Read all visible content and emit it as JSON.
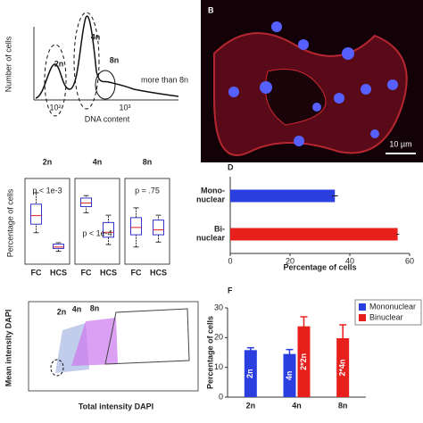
{
  "panels": {
    "a": {
      "ylabel": "Number of cells",
      "xlabel": "DNA content",
      "peaks": [
        "2n",
        "4n",
        "8n",
        "more than 8n"
      ],
      "ticks": [
        "10²",
        "10³"
      ]
    },
    "b": {
      "letter": "B",
      "scale": "10 µm"
    },
    "d": {
      "letter": "D"
    },
    "e": {
      "ylabel": "Mean intensity DAPI",
      "xlabel": "Total intensity DAPI",
      "gates": [
        "2n",
        "4n",
        "8n"
      ]
    },
    "f": {
      "letter": "F"
    }
  },
  "chart_data": [
    {
      "type": "box",
      "ylabel": "Percentage of cells",
      "panels": [
        {
          "title": "2n",
          "categories": [
            "FC",
            "HCS"
          ],
          "annotation": "p < 1e-3",
          "ylim": [
            10,
            40
          ],
          "boxes": [
            {
              "min": 21,
              "q1": 24,
              "median": 27,
              "q3": 31,
              "max": 35
            },
            {
              "min": 14.5,
              "q1": 15.5,
              "median": 16,
              "q3": 17,
              "max": 17.5
            }
          ]
        },
        {
          "title": "4n",
          "categories": [
            "FC",
            "HCS"
          ],
          "annotation": "p < 1e-4",
          "ylim": [
            25,
            60
          ],
          "boxes": [
            {
              "min": 46,
              "q1": 48.5,
              "median": 50,
              "q3": 52,
              "max": 53
            },
            {
              "min": 33,
              "q1": 36,
              "median": 38,
              "q3": 42,
              "max": 45
            }
          ]
        },
        {
          "title": "8n",
          "categories": [
            "FC",
            "HCS"
          ],
          "annotation": "p = .75",
          "ylim": [
            5,
            40
          ],
          "boxes": [
            {
              "min": 12,
              "q1": 17,
              "median": 20,
              "q3": 24,
              "max": 28
            },
            {
              "min": 14,
              "q1": 17,
              "median": 19,
              "q3": 23,
              "max": 25
            }
          ]
        }
      ]
    },
    {
      "type": "hbar",
      "xlabel": "Percentage of cells",
      "categories": [
        "Mono-nuclear",
        "Bi-nuclear"
      ],
      "values": [
        35,
        56
      ],
      "errors": [
        1,
        0.5
      ],
      "colors": [
        "#2b3ee0",
        "#e8201c"
      ],
      "xlim": [
        0,
        60
      ],
      "xticks": [
        0,
        20,
        40,
        60
      ]
    },
    {
      "type": "groupbar",
      "ylabel": "Percentage of cells",
      "categories": [
        "2n",
        "4n",
        "8n"
      ],
      "ylim": [
        0,
        30
      ],
      "yticks": [
        0,
        10,
        20,
        30
      ],
      "legend": "top-right",
      "series": [
        {
          "name": "Mononuclear",
          "color": "#2b3ee0",
          "values": [
            15.8,
            14.5,
            null
          ],
          "errors": [
            0.8,
            1.5,
            null
          ],
          "value_labels": [
            "2n",
            "4n",
            null
          ]
        },
        {
          "name": "Binuclear",
          "color": "#e8201c",
          "values": [
            null,
            23.8,
            19.8
          ],
          "errors": [
            null,
            3.2,
            4.5
          ],
          "value_labels": [
            null,
            "2*2n",
            "2*4n"
          ]
        }
      ]
    }
  ]
}
